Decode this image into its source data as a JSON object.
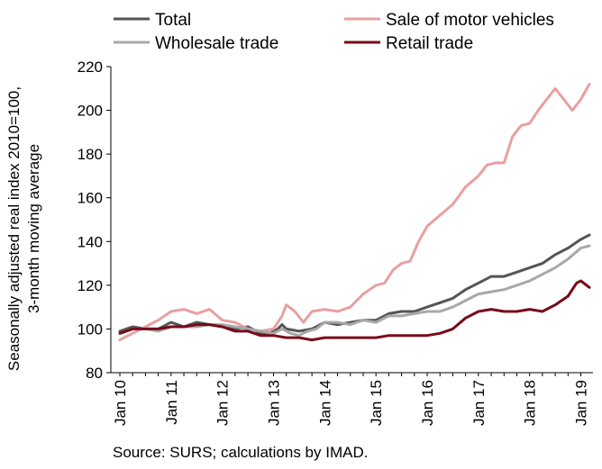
{
  "chart_data": {
    "type": "line",
    "title": "",
    "xlabel": "",
    "ylabel_lines": [
      "Seasonally adjusted real index 2010=100,",
      "3-month moving average"
    ],
    "ylim": [
      80,
      220
    ],
    "yticks": [
      80,
      100,
      120,
      140,
      160,
      180,
      200,
      220
    ],
    "xlim": [
      0,
      110
    ],
    "xticks": [
      {
        "x": 0,
        "label": "Jan 10"
      },
      {
        "x": 12,
        "label": "Jan 11"
      },
      {
        "x": 24,
        "label": "Jan 12"
      },
      {
        "x": 36,
        "label": "Jan 13"
      },
      {
        "x": 48,
        "label": "Jan 14"
      },
      {
        "x": 60,
        "label": "Jan 15"
      },
      {
        "x": 72,
        "label": "Jan 16"
      },
      {
        "x": 84,
        "label": "Jan 17"
      },
      {
        "x": 96,
        "label": "Jan 18"
      },
      {
        "x": 108,
        "label": "Jan 19"
      }
    ],
    "grid": false,
    "legend_position": "top",
    "source": "Source: SURS; calculations by IMAD.",
    "series": [
      {
        "name": "Total",
        "color": "#555555",
        "points": [
          [
            0,
            99
          ],
          [
            3,
            101
          ],
          [
            6,
            100
          ],
          [
            9,
            100
          ],
          [
            12,
            103
          ],
          [
            15,
            101
          ],
          [
            18,
            103
          ],
          [
            21,
            102
          ],
          [
            24,
            101
          ],
          [
            27,
            100
          ],
          [
            30,
            101
          ],
          [
            33,
            98
          ],
          [
            35,
            98
          ],
          [
            37,
            100
          ],
          [
            38,
            102
          ],
          [
            39,
            100
          ],
          [
            42,
            99
          ],
          [
            45,
            100
          ],
          [
            48,
            103
          ],
          [
            51,
            102
          ],
          [
            54,
            103
          ],
          [
            57,
            104
          ],
          [
            60,
            104
          ],
          [
            63,
            107
          ],
          [
            66,
            108
          ],
          [
            69,
            108
          ],
          [
            72,
            110
          ],
          [
            75,
            112
          ],
          [
            78,
            114
          ],
          [
            81,
            118
          ],
          [
            84,
            121
          ],
          [
            87,
            124
          ],
          [
            90,
            124
          ],
          [
            93,
            126
          ],
          [
            96,
            128
          ],
          [
            99,
            130
          ],
          [
            102,
            134
          ],
          [
            105,
            137
          ],
          [
            108,
            141
          ],
          [
            110,
            143
          ]
        ]
      },
      {
        "name": "Sale of motor vehicles",
        "color": "#e8a0a0",
        "points": [
          [
            0,
            95
          ],
          [
            3,
            98
          ],
          [
            6,
            101
          ],
          [
            9,
            104
          ],
          [
            12,
            108
          ],
          [
            15,
            109
          ],
          [
            18,
            107
          ],
          [
            21,
            109
          ],
          [
            24,
            104
          ],
          [
            27,
            103
          ],
          [
            30,
            100
          ],
          [
            33,
            99
          ],
          [
            36,
            100
          ],
          [
            38,
            106
          ],
          [
            39,
            111
          ],
          [
            41,
            108
          ],
          [
            43,
            103
          ],
          [
            45,
            108
          ],
          [
            48,
            109
          ],
          [
            51,
            108
          ],
          [
            54,
            110
          ],
          [
            57,
            116
          ],
          [
            60,
            120
          ],
          [
            62,
            121
          ],
          [
            64,
            127
          ],
          [
            66,
            130
          ],
          [
            68,
            131
          ],
          [
            70,
            140
          ],
          [
            72,
            147
          ],
          [
            75,
            152
          ],
          [
            78,
            157
          ],
          [
            81,
            165
          ],
          [
            84,
            170
          ],
          [
            86,
            175
          ],
          [
            88,
            176
          ],
          [
            90,
            176
          ],
          [
            92,
            188
          ],
          [
            94,
            193
          ],
          [
            96,
            194
          ],
          [
            98,
            200
          ],
          [
            100,
            205
          ],
          [
            102,
            210
          ],
          [
            104,
            205
          ],
          [
            106,
            200
          ],
          [
            108,
            205
          ],
          [
            110,
            212
          ]
        ]
      },
      {
        "name": "Wholesale trade",
        "color": "#a8a8a8",
        "points": [
          [
            0,
            98
          ],
          [
            3,
            100
          ],
          [
            6,
            100
          ],
          [
            9,
            99
          ],
          [
            12,
            101
          ],
          [
            15,
            101
          ],
          [
            18,
            101
          ],
          [
            21,
            102
          ],
          [
            24,
            102
          ],
          [
            27,
            101
          ],
          [
            30,
            100
          ],
          [
            33,
            99
          ],
          [
            36,
            98
          ],
          [
            38,
            100
          ],
          [
            40,
            98
          ],
          [
            42,
            97
          ],
          [
            44,
            99
          ],
          [
            46,
            100
          ],
          [
            48,
            103
          ],
          [
            51,
            103
          ],
          [
            54,
            102
          ],
          [
            57,
            104
          ],
          [
            60,
            103
          ],
          [
            63,
            106
          ],
          [
            66,
            106
          ],
          [
            69,
            107
          ],
          [
            72,
            108
          ],
          [
            75,
            108
          ],
          [
            78,
            110
          ],
          [
            81,
            113
          ],
          [
            84,
            116
          ],
          [
            87,
            117
          ],
          [
            90,
            118
          ],
          [
            93,
            120
          ],
          [
            96,
            122
          ],
          [
            99,
            125
          ],
          [
            102,
            128
          ],
          [
            105,
            132
          ],
          [
            108,
            137
          ],
          [
            110,
            138
          ]
        ]
      },
      {
        "name": "Retail trade",
        "color": "#7a0a1a",
        "points": [
          [
            0,
            98
          ],
          [
            3,
            100
          ],
          [
            6,
            100
          ],
          [
            9,
            100
          ],
          [
            12,
            101
          ],
          [
            15,
            101
          ],
          [
            18,
            102
          ],
          [
            21,
            102
          ],
          [
            24,
            101
          ],
          [
            27,
            99
          ],
          [
            30,
            99
          ],
          [
            33,
            97
          ],
          [
            36,
            97
          ],
          [
            39,
            96
          ],
          [
            42,
            96
          ],
          [
            45,
            95
          ],
          [
            48,
            96
          ],
          [
            51,
            96
          ],
          [
            54,
            96
          ],
          [
            57,
            96
          ],
          [
            60,
            96
          ],
          [
            63,
            97
          ],
          [
            66,
            97
          ],
          [
            69,
            97
          ],
          [
            72,
            97
          ],
          [
            75,
            98
          ],
          [
            78,
            100
          ],
          [
            81,
            105
          ],
          [
            84,
            108
          ],
          [
            87,
            109
          ],
          [
            90,
            108
          ],
          [
            93,
            108
          ],
          [
            96,
            109
          ],
          [
            99,
            108
          ],
          [
            102,
            111
          ],
          [
            105,
            115
          ],
          [
            107,
            121
          ],
          [
            108,
            122
          ],
          [
            110,
            119
          ]
        ]
      }
    ]
  }
}
